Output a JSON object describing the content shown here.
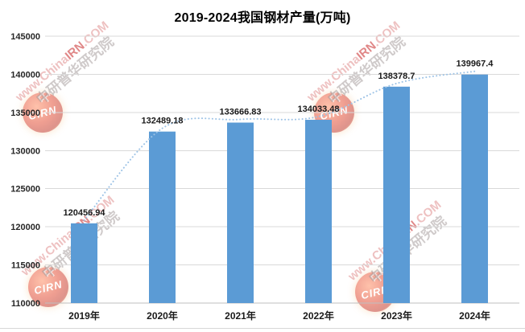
{
  "chart_data": {
    "type": "bar",
    "title": "2019-2024我国钢材产量(万吨)",
    "categories": [
      "2019年",
      "2020年",
      "2021年",
      "2022年",
      "2023年",
      "2024年"
    ],
    "values": [
      120456.94,
      132489.18,
      133666.83,
      134033.48,
      138378.7,
      139967.4
    ],
    "value_labels": [
      "120456.94",
      "132489.18",
      "133666.83",
      "134033.48",
      "138378.7",
      "139967.4"
    ],
    "xlabel": "",
    "ylabel": "",
    "ylim": [
      110000,
      145000
    ],
    "ytick_step": 5000,
    "ytick_labels": [
      "110000",
      "115000",
      "120000",
      "125000",
      "130000",
      "135000",
      "140000",
      "145000"
    ],
    "grid": true,
    "legend": "none",
    "background": "#FFFFFF",
    "bar_color": "#5B9BD5",
    "trend_color": "#9DC3E6",
    "gridline_color": "#D9D9D9",
    "axis_line_color": "#BFBFBF",
    "label_color": "#1A1A1A"
  },
  "watermark": {
    "logo_text": "CIRN",
    "url_prefix": "www.China",
    "url_mid": "IRN",
    "url_suffix": ".COM",
    "cn_name": "中研普华研究院"
  }
}
